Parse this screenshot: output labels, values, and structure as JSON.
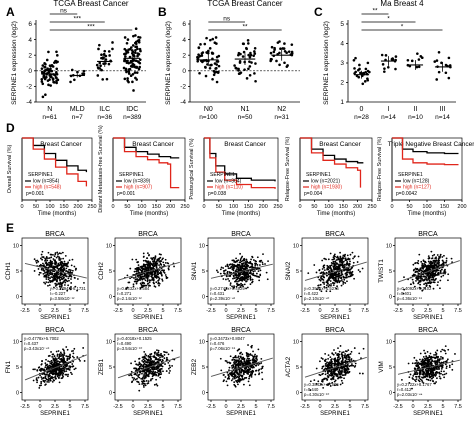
{
  "panels": {
    "A": "A",
    "B": "B",
    "C": "C",
    "D": "D",
    "E": "E"
  },
  "colors": {
    "red": "#e0261b",
    "black": "#000000",
    "gray": "#777777"
  },
  "chart_data": [
    {
      "id": "A",
      "type": "scatter",
      "title": "TCGA Breast Cancer",
      "ylabel": "SERPINE1 expression (log2)",
      "ylim": [
        -4,
        6
      ],
      "yticks": [
        "-4",
        "-2",
        "0",
        "2",
        "4",
        "6"
      ],
      "categories": [
        "N",
        "MLD",
        "ILC",
        "IDC"
      ],
      "counts": [
        "n=61",
        "n=7",
        "n=36",
        "n=389"
      ],
      "means": [
        -0.4,
        -0.6,
        1.2,
        1.6
      ],
      "spread": [
        1.3,
        0.5,
        1.4,
        1.7
      ],
      "significance": [
        {
          "from": 0,
          "to": 1,
          "label": "ns"
        },
        {
          "from": 0,
          "to": 2,
          "label": "***"
        },
        {
          "from": 0,
          "to": 3,
          "label": "***"
        }
      ]
    },
    {
      "id": "B",
      "type": "scatter",
      "title": "TCGA Breast Cancer",
      "ylabel": "SERPINE1 expression (log2)",
      "ylim": [
        -4,
        6
      ],
      "yticks": [
        "-4",
        "-2",
        "0",
        "2",
        "4",
        "6"
      ],
      "categories": [
        "N0",
        "N1",
        "N2"
      ],
      "counts": [
        "n=100",
        "n=50",
        "n=31"
      ],
      "means": [
        1.4,
        1.5,
        2.0
      ],
      "spread": [
        1.6,
        1.5,
        1.4
      ],
      "significance": [
        {
          "from": 0,
          "to": 1,
          "label": "ns"
        },
        {
          "from": 0,
          "to": 2,
          "label": "**"
        }
      ]
    },
    {
      "id": "C",
      "type": "scatter",
      "title": "Ma Breast 4",
      "ylabel": "SERPINE1 expression (log2)",
      "ylim": [
        1,
        5
      ],
      "yticks": [
        "1",
        "2",
        "3",
        "4",
        "5"
      ],
      "categories": [
        "0",
        "I",
        "II",
        "III"
      ],
      "counts": [
        "n=28",
        "n=14",
        "n=10",
        "n=14"
      ],
      "means": [
        2.4,
        3.1,
        2.9,
        2.8
      ],
      "spread": [
        0.4,
        0.5,
        0.5,
        0.5
      ],
      "significance": [
        {
          "from": 0,
          "to": 1,
          "label": "**"
        },
        {
          "from": 0,
          "to": 2,
          "label": "*"
        },
        {
          "from": 0,
          "to": 3,
          "label": "*"
        }
      ]
    },
    {
      "id": "D1",
      "type": "line",
      "title": "Breast Cancer",
      "ylabel": "Overall Survival (%)",
      "xlabel": "Time (months)",
      "xticks": [
        "0",
        "50",
        "100",
        "150",
        "200",
        "250"
      ],
      "xlim": [
        0,
        250
      ],
      "legend_title": "SERPINE1",
      "legend": [
        "low (n=854)",
        "high (n=548)"
      ],
      "pvalue": "p=0.001",
      "series": [
        {
          "name": "low",
          "points": [
            [
              0,
              100
            ],
            [
              40,
              88
            ],
            [
              80,
              75
            ],
            [
              120,
              64
            ],
            [
              160,
              55
            ],
            [
              200,
              48
            ],
            [
              230,
              45
            ]
          ]
        },
        {
          "name": "high",
          "points": [
            [
              0,
              100
            ],
            [
              40,
              82
            ],
            [
              80,
              66
            ],
            [
              120,
              53
            ],
            [
              160,
              42
            ],
            [
              200,
              30
            ],
            [
              230,
              22
            ]
          ]
        }
      ]
    },
    {
      "id": "D2",
      "type": "line",
      "title": "Breast Cancer",
      "ylabel": "Distant Metastasis-free Survival (%)",
      "xlabel": "Time (months)",
      "xticks": [
        "0",
        "50",
        "100",
        "150",
        "200",
        "250"
      ],
      "xlim": [
        0,
        250
      ],
      "legend_title": "SERPINE1",
      "legend": [
        "low (n=839)",
        "high (n=907)"
      ],
      "pvalue": "p=0.001",
      "series": [
        {
          "name": "low",
          "points": [
            [
              0,
              100
            ],
            [
              40,
              85
            ],
            [
              80,
              78
            ],
            [
              120,
              74
            ],
            [
              160,
              70
            ],
            [
              200,
              68
            ],
            [
              230,
              68
            ]
          ]
        },
        {
          "name": "high",
          "points": [
            [
              0,
              100
            ],
            [
              40,
              78
            ],
            [
              80,
              70
            ],
            [
              120,
              65
            ],
            [
              160,
              60
            ],
            [
              190,
              58
            ],
            [
              200,
              20
            ],
            [
              230,
              20
            ]
          ]
        }
      ]
    },
    {
      "id": "D3",
      "type": "line",
      "title": "Breast Cancer",
      "ylabel": "Postsurgical Survival (%)",
      "xlabel": "Time (months)",
      "xticks": [
        "0",
        "50",
        "100",
        "150",
        "200",
        "250"
      ],
      "xlim": [
        0,
        250
      ],
      "legend_title": "SERPINE1",
      "legend": [
        "low (n=304)",
        "high (n=110)"
      ],
      "pvalue": "p=0.038",
      "series": [
        {
          "name": "low",
          "points": [
            [
              0,
              100
            ],
            [
              20,
              75
            ],
            [
              40,
              55
            ],
            [
              70,
              42
            ],
            [
              110,
              35
            ],
            [
              160,
              32
            ],
            [
              240,
              30
            ]
          ]
        },
        {
          "name": "high",
          "points": [
            [
              0,
              100
            ],
            [
              20,
              68
            ],
            [
              40,
              45
            ],
            [
              70,
              32
            ],
            [
              110,
              25
            ],
            [
              160,
              20
            ],
            [
              240,
              18
            ]
          ]
        }
      ]
    },
    {
      "id": "D4",
      "type": "line",
      "title": "Breast Cancer",
      "ylabel": "Relapse-Free Survival (%)",
      "xlabel": "Time (months)",
      "xticks": [
        "0",
        "50",
        "100",
        "150",
        "200",
        "250"
      ],
      "xlim": [
        0,
        250
      ],
      "legend_title": "SERPINE1",
      "legend": [
        "low (n=2021)",
        "high (n=1930)"
      ],
      "pvalue": "p=0.004",
      "series": [
        {
          "name": "low",
          "points": [
            [
              0,
              100
            ],
            [
              40,
              82
            ],
            [
              80,
              72
            ],
            [
              120,
              66
            ],
            [
              160,
              62
            ],
            [
              200,
              60
            ],
            [
              220,
              60
            ]
          ]
        },
        {
          "name": "high",
          "points": [
            [
              0,
              100
            ],
            [
              40,
              76
            ],
            [
              80,
              64
            ],
            [
              120,
              58
            ],
            [
              160,
              52
            ],
            [
              200,
              48
            ],
            [
              210,
              20
            ]
          ]
        }
      ]
    },
    {
      "id": "D5",
      "type": "line",
      "title": "Triple Negative Breast Cancer",
      "ylabel": "Relapse-Free Survival (%)",
      "xlabel": "Time (months)",
      "xticks": [
        "0",
        "50",
        "100",
        "150",
        "200"
      ],
      "xlim": [
        0,
        200
      ],
      "legend_title": "SERPINE1",
      "legend": [
        "low (n=128)",
        "high (n=127)"
      ],
      "pvalue": "p=0.0042",
      "series": [
        {
          "name": "low",
          "points": [
            [
              0,
              100
            ],
            [
              30,
              82
            ],
            [
              60,
              78
            ],
            [
              100,
              76
            ],
            [
              150,
              75
            ],
            [
              190,
              75
            ]
          ]
        },
        {
          "name": "high",
          "points": [
            [
              0,
              100
            ],
            [
              30,
              66
            ],
            [
              60,
              60
            ],
            [
              100,
              58
            ],
            [
              150,
              57
            ],
            [
              190,
              57
            ]
          ]
        }
      ]
    },
    {
      "id": "E1",
      "type": "scatter",
      "title": "BRCA",
      "xlabel": "SEPRINE1",
      "ylabel": "CDH1",
      "stats": [
        "y=-0.2794x+6.1731",
        "r=-0.227",
        "p=3.58x10⁻¹²"
      ],
      "slope": -0.28,
      "xticks": [
        "-2.5",
        "0",
        "2.5",
        "5",
        "7.5"
      ],
      "yticks": [
        "0",
        "5",
        "10"
      ]
    },
    {
      "id": "E2",
      "type": "scatter",
      "title": "BRCA",
      "xlabel": "SEPRINE1",
      "ylabel": "CDH2",
      "stats": [
        "y=0.3432x+1.584",
        "r=0.271",
        "p=2.14x10⁻¹²"
      ],
      "slope": 0.34,
      "xticks": [
        "-2.5",
        "0",
        "2.5",
        "5",
        "7.5"
      ],
      "yticks": [
        "0",
        "5",
        "10"
      ]
    },
    {
      "id": "E3",
      "type": "scatter",
      "title": "BRCA",
      "xlabel": "SEPRINE1",
      "ylabel": "SNAI1",
      "stats": [
        "y=0.2743x+0.4929",
        "r=0.431",
        "p=2.39x10⁻⁴²"
      ],
      "slope": 0.27,
      "xticks": [
        "-2.5",
        "0",
        "2.5",
        "5",
        "7.5"
      ],
      "yticks": [
        "0",
        "5",
        "10"
      ]
    },
    {
      "id": "E4",
      "type": "scatter",
      "title": "BRCA",
      "xlabel": "SEPRINE1",
      "ylabel": "SNAI2",
      "stats": [
        "y=0.3502x+1.5276",
        "r=0.422",
        "p=2.10x10⁻⁴⁰"
      ],
      "slope": 0.35,
      "xticks": [
        "-2.5",
        "0",
        "2.5",
        "5",
        "7.5"
      ],
      "yticks": [
        "0",
        "5",
        "10"
      ]
    },
    {
      "id": "E5",
      "type": "scatter",
      "title": "BRCA",
      "xlabel": "SEPRINE1",
      "ylabel": "TWIST1",
      "stats": [
        "y=0.4092x+0.1102",
        "r=0.401",
        "p=4.36x10⁻⁵¹"
      ],
      "slope": 0.41,
      "xticks": [
        "-2.5",
        "0",
        "2.5",
        "5",
        "7.5"
      ],
      "yticks": [
        "0",
        "5",
        "10"
      ]
    },
    {
      "id": "E6",
      "type": "scatter",
      "title": "BRCA",
      "xlabel": "SEPRINE1",
      "ylabel": "FN1",
      "stats": [
        "y=0.4778x+5.7002",
        "r=0.437",
        "p=3.43x10⁻⁴⁹"
      ],
      "slope": 0.48,
      "xticks": [
        "-2.5",
        "0",
        "2.5",
        "5",
        "7.5"
      ],
      "yticks": [
        "0",
        "5",
        "10"
      ]
    },
    {
      "id": "E7",
      "type": "scatter",
      "title": "BRCA",
      "xlabel": "SEPRINE1",
      "ylabel": "ZEB1",
      "stats": [
        "y=0.4018x+0.1525",
        "r=0.490",
        "p=3.54x10⁻⁶⁰"
      ],
      "slope": 0.4,
      "xticks": [
        "-2.5",
        "0",
        "2.5",
        "5",
        "7.5"
      ],
      "yticks": [
        "0",
        "5",
        "10"
      ]
    },
    {
      "id": "E8",
      "type": "scatter",
      "title": "BRCA",
      "xlabel": "SEPRINE1",
      "ylabel": "ZEB2",
      "stats": [
        "y=0.3473x+0.8047",
        "r=0.476",
        "p=7.06x10⁻⁵⁵"
      ],
      "slope": 0.35,
      "xticks": [
        "-2.5",
        "0",
        "2.5",
        "5",
        "7.5"
      ],
      "yticks": [
        "0",
        "5",
        "10"
      ]
    },
    {
      "id": "E9",
      "type": "scatter",
      "title": "BRCA",
      "xlabel": "SEPRINE1",
      "ylabel": "ACTA2",
      "stats": [
        "y=0.3843x+4.7505",
        "r=0.440",
        "p=4.30x10⁻⁵⁰"
      ],
      "slope": 0.38,
      "xticks": [
        "-2.5",
        "0",
        "2.5",
        "5",
        "7.5"
      ],
      "yticks": [
        "0",
        "5",
        "10"
      ]
    },
    {
      "id": "E10",
      "type": "scatter",
      "title": "BRCA",
      "xlabel": "SEPRINE1",
      "ylabel": "VIM",
      "stats": [
        "y=0.2722x+8.1767",
        "r=0.412",
        "p=2.03x10⁻⁴⁴"
      ],
      "slope": 0.27,
      "xticks": [
        "-2.5",
        "0",
        "2.5",
        "5",
        "7.5"
      ],
      "yticks": [
        "0",
        "5",
        "10"
      ]
    }
  ]
}
